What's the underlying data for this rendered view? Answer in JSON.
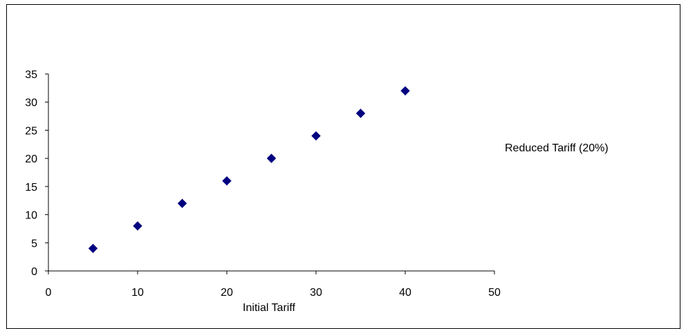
{
  "chart_data": {
    "type": "scatter",
    "title": "",
    "xlabel": "Initial Tariff",
    "ylabel": "",
    "xlim": [
      0,
      50
    ],
    "ylim": [
      0,
      35
    ],
    "x_ticks": [
      "0",
      "10",
      "20",
      "30",
      "40",
      "50"
    ],
    "y_ticks": [
      "0",
      "5",
      "10",
      "15",
      "20",
      "25",
      "30",
      "35"
    ],
    "grid": false,
    "legend_position": "right",
    "series": [
      {
        "name": "Reduced Tariff (20%)",
        "marker": "diamond",
        "color": "#000080",
        "x": [
          5,
          10,
          15,
          20,
          25,
          30,
          35,
          40
        ],
        "y": [
          4,
          8,
          12,
          16,
          20,
          24,
          28,
          32
        ]
      }
    ]
  }
}
